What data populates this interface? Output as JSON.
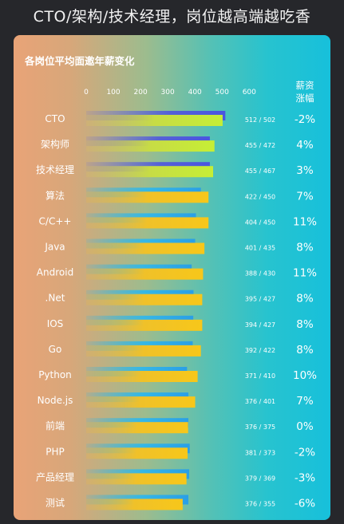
{
  "page": {
    "headline": "CTO/架构/技术经理，岗位越高端越吃香"
  },
  "colors": {
    "background": "#26272b",
    "bar_prev": "#3aa0e6",
    "bar_prev_top": "#4a63d8",
    "bar_curr": "#f2c31a",
    "bar_curr_top": "#c9e832"
  },
  "chart_data": {
    "type": "bar",
    "orientation": "horizontal",
    "title": "各岗位平均面邀年薪变化",
    "change_header": [
      "薪资",
      "涨幅"
    ],
    "xlim": [
      0,
      600
    ],
    "xticks": [
      0,
      100,
      200,
      300,
      400,
      500,
      600
    ],
    "grid": false,
    "categories": [
      "CTO",
      "架构师",
      "技术经理",
      "算法",
      "C/C++",
      "Java",
      "Android",
      ".Net",
      "IOS",
      "Go",
      "Python",
      "Node.js",
      "前端",
      "PHP",
      "产品经理",
      "测试"
    ],
    "series": [
      {
        "values": [
          512,
          455,
          455,
          422,
          404,
          401,
          388,
          395,
          394,
          392,
          371,
          376,
          376,
          381,
          379,
          376
        ]
      },
      {
        "values": [
          502,
          472,
          467,
          450,
          450,
          435,
          430,
          427,
          427,
          422,
          410,
          401,
          375,
          373,
          369,
          355
        ]
      }
    ],
    "value_labels": [
      "512 / 502",
      "455 / 472",
      "455 / 467",
      "422 / 450",
      "404 / 450",
      "401 / 435",
      "388 / 430",
      "395 / 427",
      "394 / 427",
      "392 / 422",
      "371 / 410",
      "376 / 401",
      "376 / 375",
      "381 / 373",
      "379 / 369",
      "376 / 355"
    ],
    "change": [
      "-2%",
      "4%",
      "3%",
      "7%",
      "11%",
      "8%",
      "11%",
      "8%",
      "8%",
      "8%",
      "10%",
      "7%",
      "0%",
      "-2%",
      "-3%",
      "-6%"
    ]
  }
}
